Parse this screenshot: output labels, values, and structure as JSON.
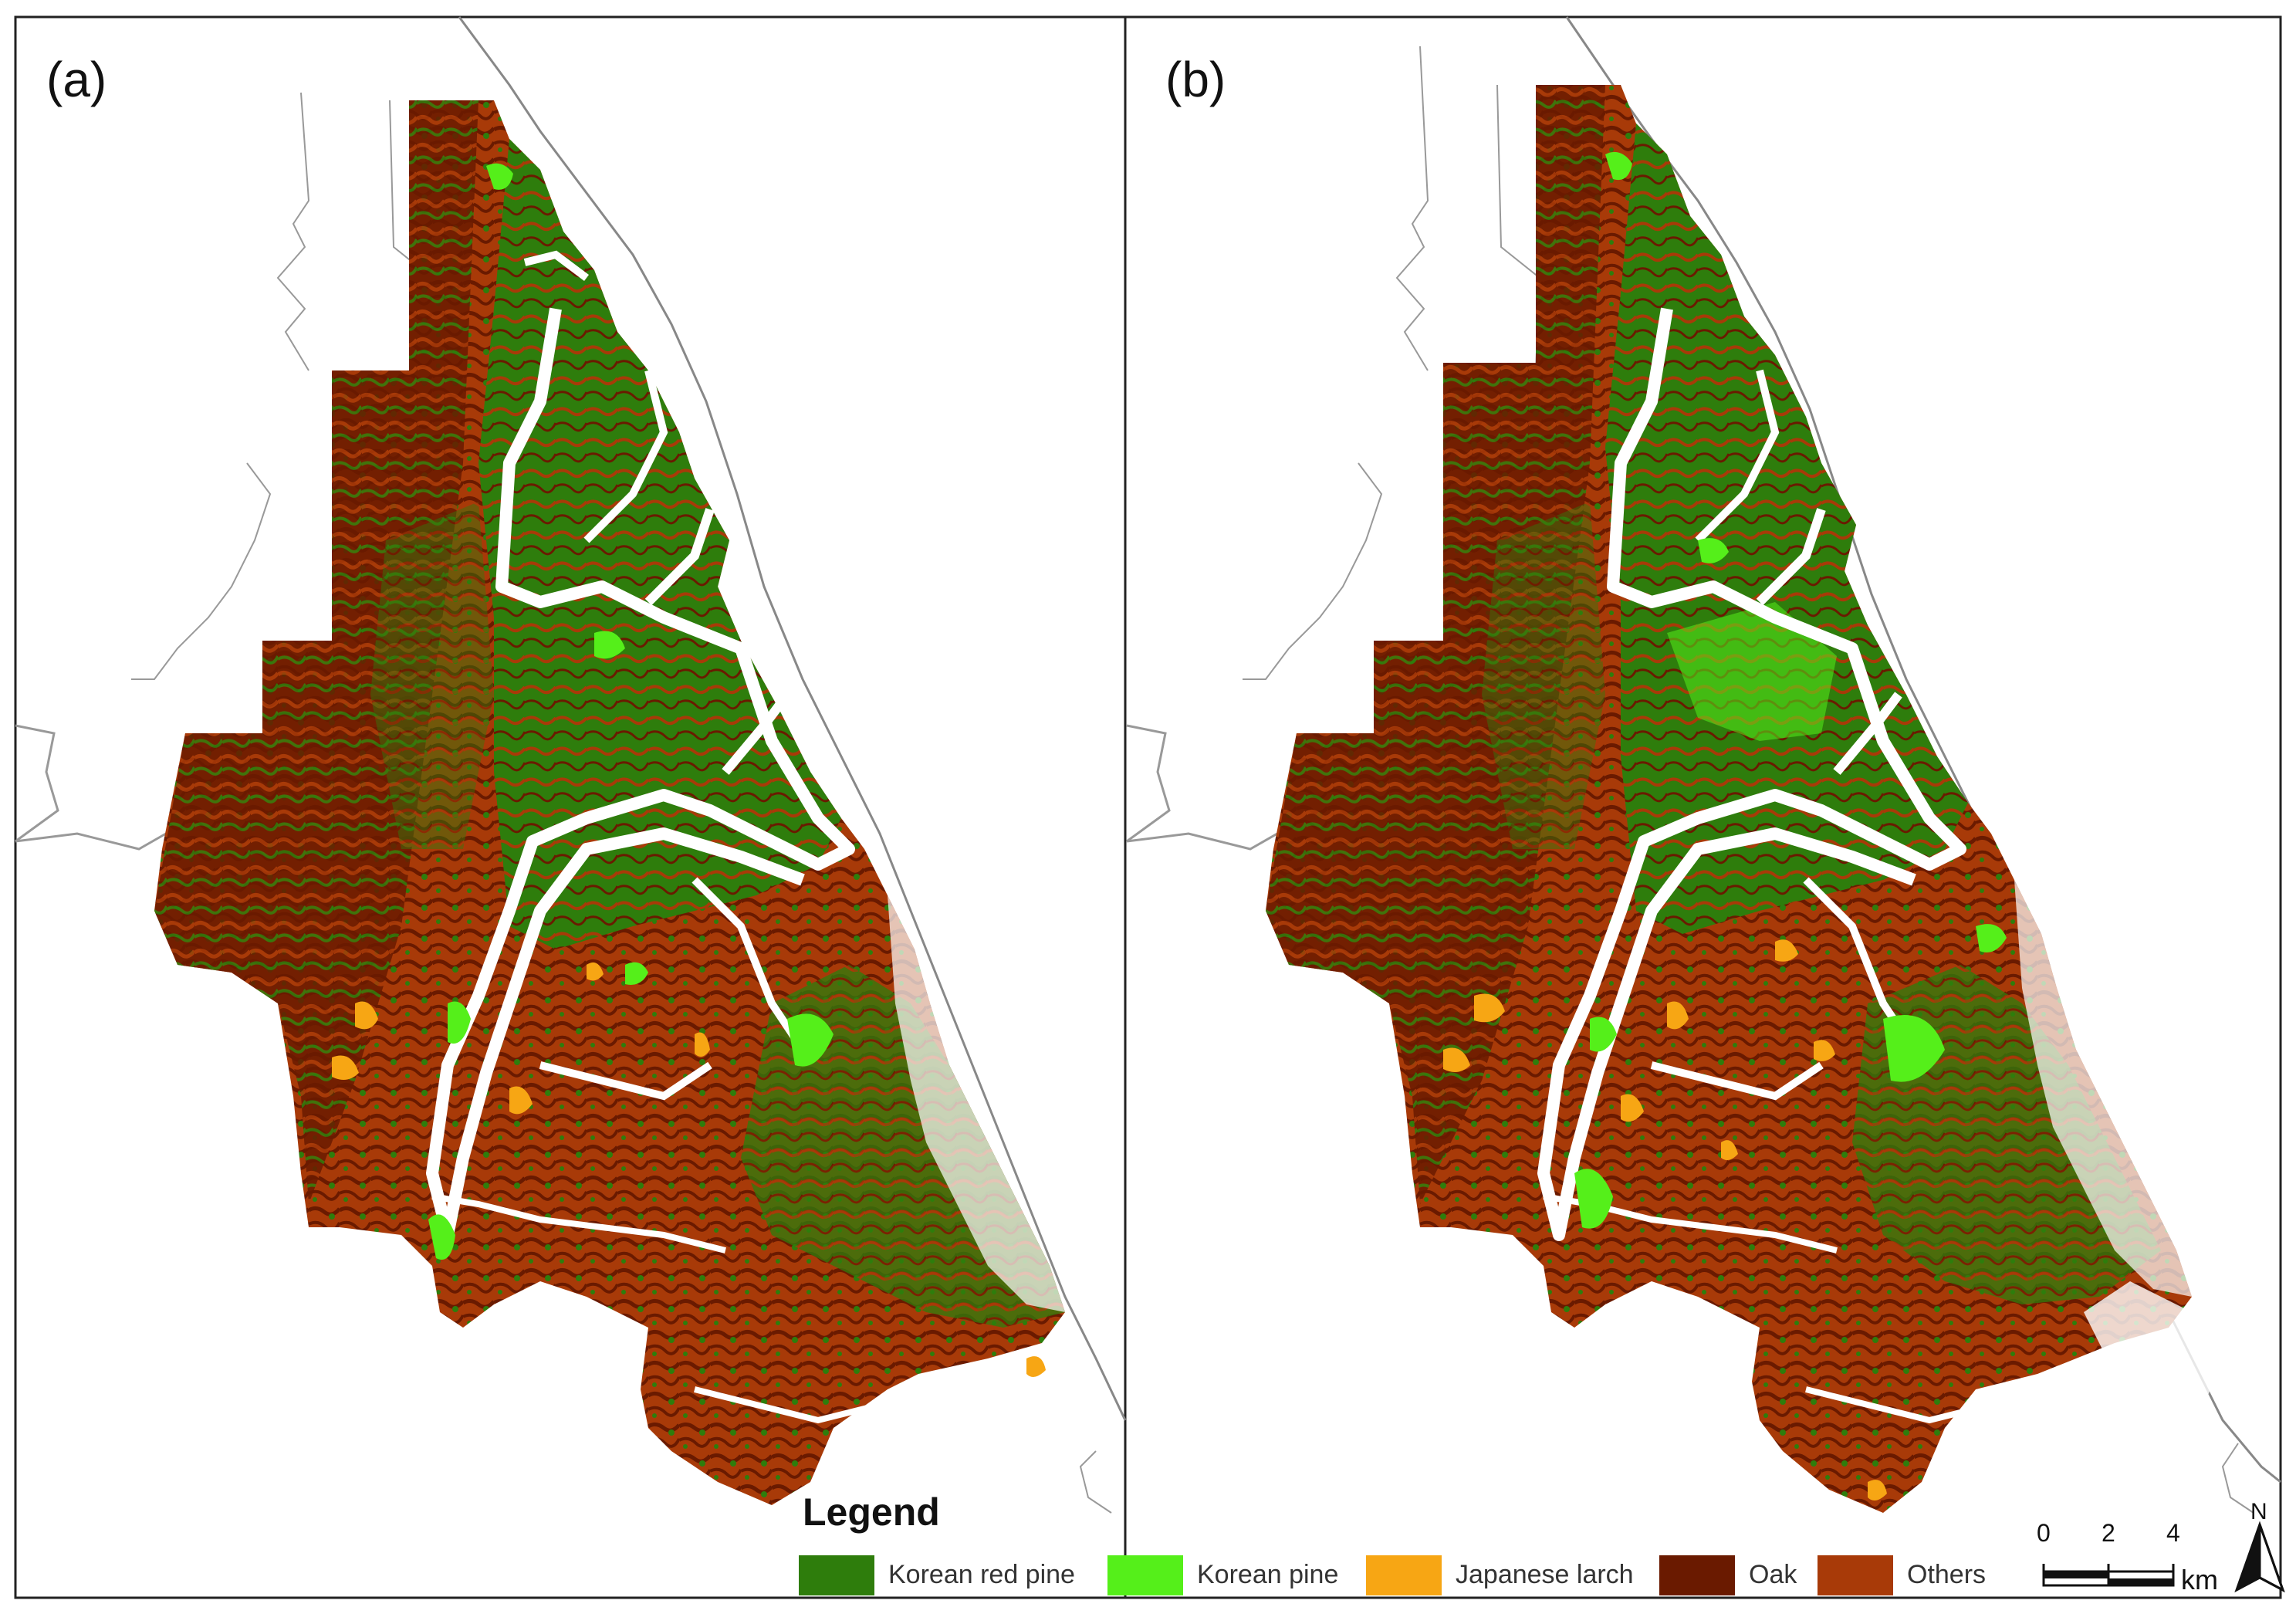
{
  "panels": [
    {
      "label": "(a)"
    },
    {
      "label": "(b)"
    }
  ],
  "legend": {
    "title": "Legend",
    "items": [
      {
        "label": "Korean red pine",
        "color": "#2e7d0c"
      },
      {
        "label": "Korean pine",
        "color": "#55ef1a"
      },
      {
        "label": "Japanese larch",
        "color": "#f7a614"
      },
      {
        "label": "Oak",
        "color": "#6a1a00"
      },
      {
        "label": "Others",
        "color": "#a83a08"
      }
    ]
  },
  "scale_bar": {
    "ticks": [
      "0",
      "2",
      "4"
    ],
    "unit": "km"
  },
  "north_arrow": {
    "label": "N"
  }
}
